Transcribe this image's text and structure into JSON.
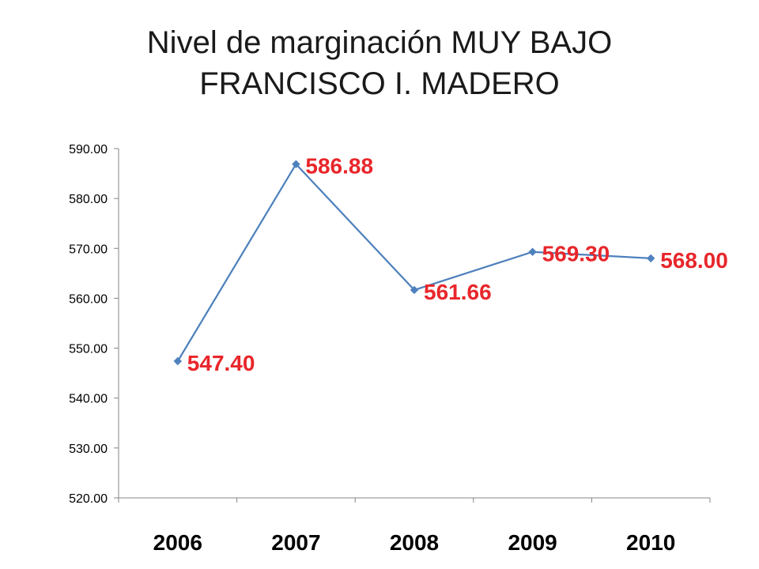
{
  "title": {
    "line1": "Nivel de marginación  MUY BAJO",
    "line2": "FRANCISCO I. MADERO"
  },
  "chart_data": {
    "type": "line",
    "title": "Nivel de marginación  MUY BAJO FRANCISCO I. MADERO",
    "xlabel": "",
    "ylabel": "",
    "categories": [
      "2006",
      "2007",
      "2008",
      "2009",
      "2010"
    ],
    "series": [
      {
        "values": [
          547.4,
          586.88,
          561.66,
          569.3,
          568.0
        ]
      }
    ],
    "data_labels": [
      "547.40",
      "586.88",
      "561.66",
      "569.30",
      "568.00"
    ],
    "ylim": [
      520,
      590
    ],
    "yticks": [
      "520.00",
      "530.00",
      "540.00",
      "550.00",
      "560.00",
      "570.00",
      "580.00",
      "590.00"
    ],
    "grid": false,
    "legend": "none",
    "line_color": "#4f81bd",
    "label_color": "#e8262b"
  }
}
